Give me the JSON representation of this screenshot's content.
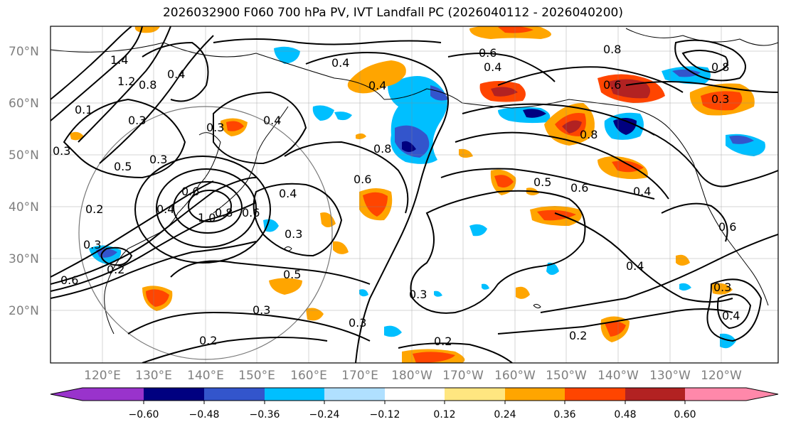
{
  "title": "2026032900 F060 700 hPa PV, IVT Landfall PC (2026040112 - 2026040200)",
  "lat_labels": [
    "70°N",
    "60°N",
    "50°N",
    "40°N",
    "30°N",
    "20°N"
  ],
  "lon_labels": [
    "120°E",
    "130°E",
    "140°E",
    "150°E",
    "160°E",
    "170°E",
    "180°W",
    "170°W",
    "160°W",
    "150°W",
    "140°W",
    "130°W",
    "120°W"
  ],
  "colorbar": {
    "ticks": [
      "−0.60",
      "−0.48",
      "−0.36",
      "−0.24",
      "−0.12",
      "0.12",
      "0.24",
      "0.36",
      "0.48",
      "0.60"
    ],
    "colors": [
      "#9933cc",
      "#000080",
      "#3355cc",
      "#00bfff",
      "#b0e0ff",
      "#ffffff",
      "#ffe680",
      "#ffa500",
      "#ff4500",
      "#b22222",
      "#ff88aa"
    ]
  },
  "contour_labels": [
    "0.4",
    "0.4",
    "0.6",
    "0.4",
    "0.8",
    "0.6",
    "0.8",
    "1.4",
    "1.2",
    "0.8",
    "0.4",
    "0.1",
    "0.3",
    "0.5",
    "0.3",
    "0.4",
    "0.4",
    "0.3",
    "0.4",
    "1.0",
    "0.8",
    "0.6",
    "0.3",
    "0.3",
    "0.5",
    "0.3",
    "0.6",
    "0.2",
    "0.5",
    "0.6",
    "0.6",
    "0.4",
    "0.8",
    "0.3",
    "0.8",
    "0.6",
    "0.3",
    "0.4",
    "0.2",
    "0.2",
    "0.3",
    "0.2",
    "0.3",
    "0.4",
    "0.3",
    "0.6",
    "0.2"
  ]
}
